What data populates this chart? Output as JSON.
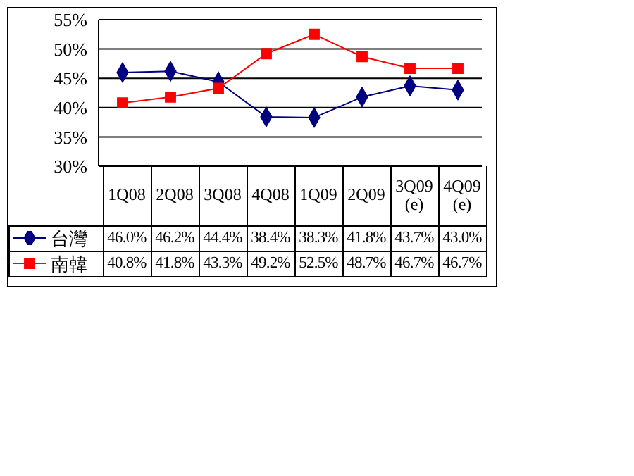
{
  "chart_data": {
    "type": "line",
    "categories": [
      "1Q08",
      "2Q08",
      "3Q08",
      "4Q08",
      "1Q09",
      "2Q09",
      "3Q09 (e)",
      "4Q09 (e)"
    ],
    "series": [
      {
        "name": "台灣",
        "color": "#000080",
        "marker": "diamond",
        "values": [
          46.0,
          46.2,
          44.4,
          38.4,
          38.3,
          41.8,
          43.7,
          43.0
        ],
        "value_labels": [
          "46.0%",
          "46.2%",
          "44.4%",
          "38.4%",
          "38.3%",
          "41.8%",
          "43.7%",
          "43.0%"
        ]
      },
      {
        "name": "南韓",
        "color": "#ff0000",
        "marker": "square",
        "values": [
          40.8,
          41.8,
          43.3,
          49.2,
          52.5,
          48.7,
          46.7,
          46.7
        ],
        "value_labels": [
          "40.8%",
          "41.8%",
          "43.3%",
          "49.2%",
          "52.5%",
          "48.7%",
          "46.7%",
          "46.7%"
        ]
      }
    ],
    "ylim": [
      30,
      55
    ],
    "yticks": [
      {
        "value": 30,
        "label": "30%"
      },
      {
        "value": 35,
        "label": "35%"
      },
      {
        "value": 40,
        "label": "40%"
      },
      {
        "value": 45,
        "label": "45%"
      },
      {
        "value": 50,
        "label": "50%"
      },
      {
        "value": 55,
        "label": "55%"
      }
    ],
    "grid": "y",
    "legend": "bottom left"
  }
}
